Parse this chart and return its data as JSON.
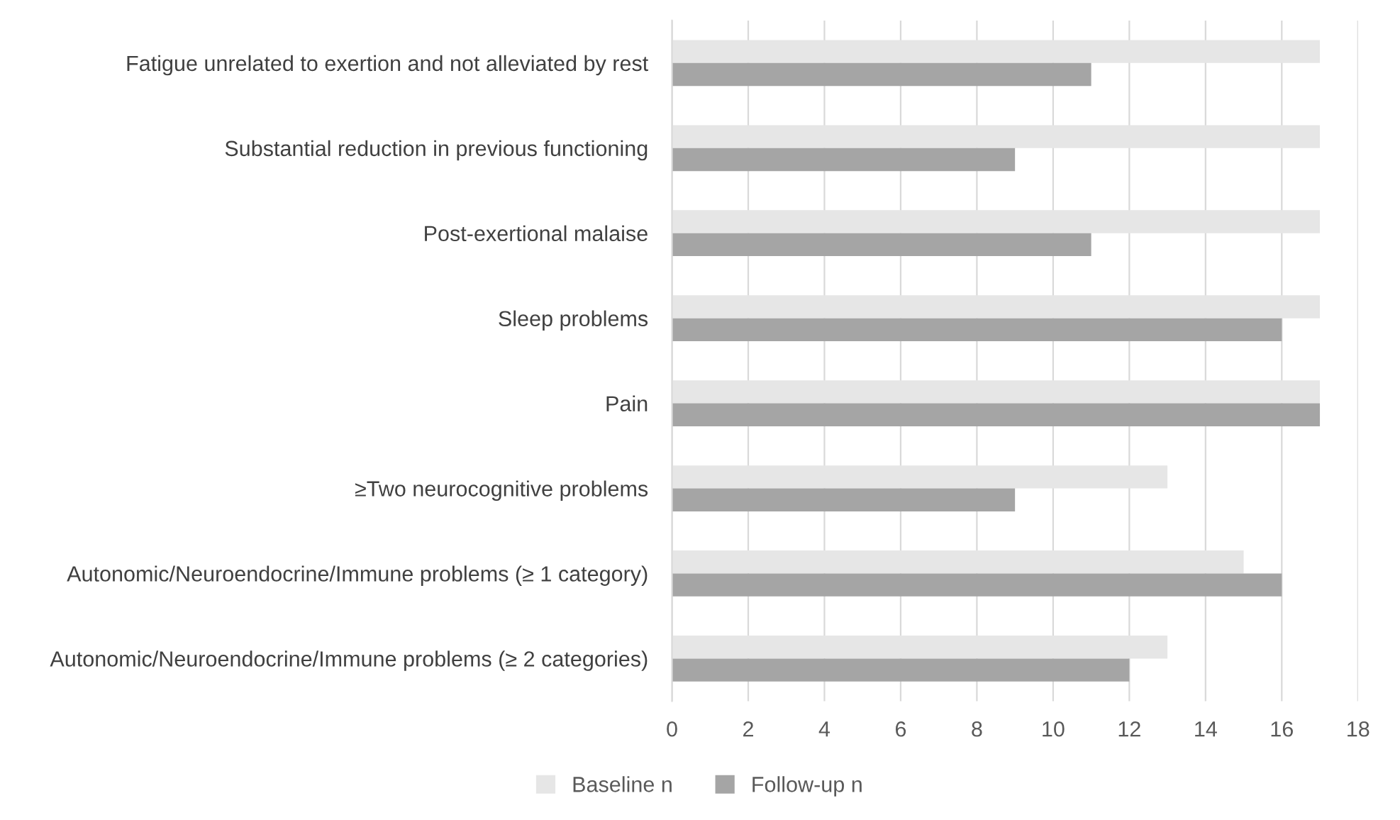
{
  "chart_data": {
    "type": "bar",
    "orientation": "horizontal",
    "categories": [
      "Fatigue unrelated to exertion and not alleviated by rest",
      "Substantial reduction in previous functioning",
      "Post-exertional malaise",
      "Sleep problems",
      "Pain",
      "≥Two neurocognitive problems",
      "Autonomic/Neuroendocrine/Immune problems (≥ 1 category)",
      "Autonomic/Neuroendocrine/Immune problems (≥ 2 categories)"
    ],
    "series": [
      {
        "name": "Baseline n",
        "color": "#e6e6e6",
        "values": [
          17,
          17,
          17,
          17,
          17,
          13,
          15,
          13
        ]
      },
      {
        "name": "Follow-up n",
        "color": "#a5a5a5",
        "values": [
          11,
          9,
          11,
          16,
          17,
          9,
          16,
          12
        ]
      }
    ],
    "xlim": [
      0,
      18
    ],
    "xticks": [
      0,
      2,
      4,
      6,
      8,
      10,
      12,
      14,
      16,
      18
    ],
    "grid": "x",
    "legend": "bottom"
  }
}
